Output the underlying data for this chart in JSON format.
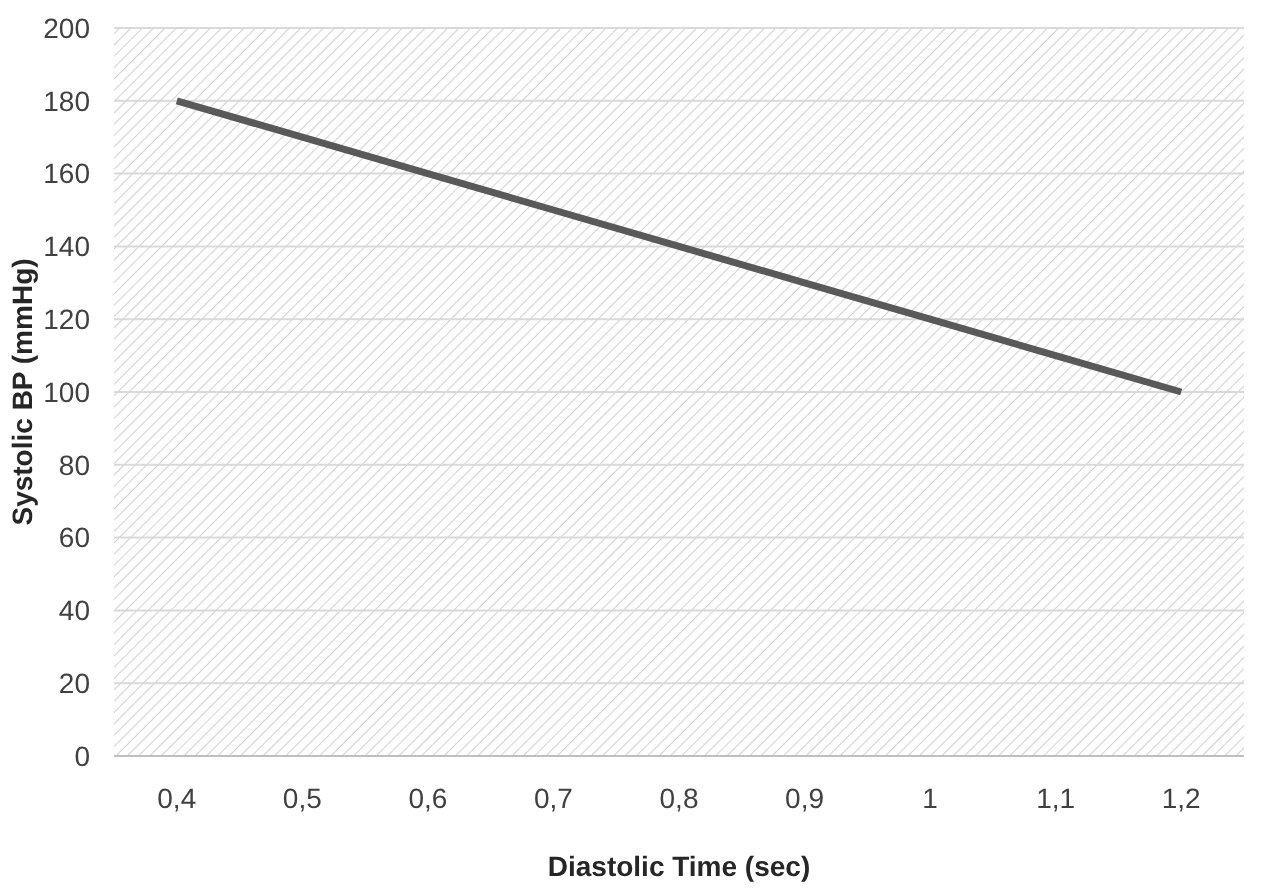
{
  "chart_data": {
    "type": "line",
    "xlabel": "Diastolic Time (sec)",
    "ylabel": "Systolic BP (mmHg)",
    "categories": [
      "0,4",
      "0,5",
      "0,6",
      "0,7",
      "0,8",
      "0,9",
      "1",
      "1,1",
      "1,2"
    ],
    "series": [
      {
        "color": "#595959",
        "values": [
          180,
          170,
          160,
          150,
          140,
          130,
          120,
          110,
          100
        ]
      }
    ],
    "ylim": [
      0,
      200
    ],
    "yticks": [
      0,
      20,
      40,
      60,
      80,
      100,
      120,
      140,
      160,
      180,
      200
    ],
    "grid": "y",
    "marker": "none",
    "line_style": "solid"
  }
}
